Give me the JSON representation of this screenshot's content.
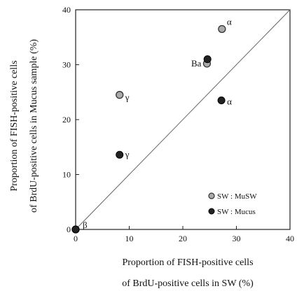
{
  "chart_data": {
    "type": "scatter",
    "xlim": [
      0,
      40
    ],
    "ylim": [
      0,
      40
    ],
    "x_ticks": [
      0,
      10,
      20,
      30,
      40
    ],
    "y_ticks": [
      0,
      10,
      20,
      30,
      40
    ],
    "xlabel_lines": [
      "Proportion of FISH-positive cells",
      "of BrdU-positive cells in SW (%)"
    ],
    "ylabel_lines": [
      "Proportion of FISH-positive cells",
      "of BrdU-positive cells in Mucus sample (%)"
    ],
    "grid": false,
    "legend_position": "bottom-right",
    "reference_line": {
      "from": [
        0,
        0
      ],
      "to": [
        40,
        40
      ]
    },
    "series": [
      {
        "name": "SW : MuSW",
        "marker": "grey-circle",
        "color": "#aaaaaa",
        "points": [
          {
            "x": 27.3,
            "y": 36.5,
            "label": "α"
          },
          {
            "x": 24.5,
            "y": 30.2,
            "label": "Ba"
          },
          {
            "x": 8.2,
            "y": 24.5,
            "label": "γ"
          },
          {
            "x": 0,
            "y": 0,
            "label": ""
          }
        ]
      },
      {
        "name": "SW : Mucus",
        "marker": "black-circle",
        "color": "#222222",
        "points": [
          {
            "x": 24.6,
            "y": 31.0,
            "label": ""
          },
          {
            "x": 27.2,
            "y": 23.5,
            "label": "α"
          },
          {
            "x": 8.2,
            "y": 13.6,
            "label": "γ"
          },
          {
            "x": 0,
            "y": 0,
            "label": "β"
          }
        ]
      }
    ]
  }
}
